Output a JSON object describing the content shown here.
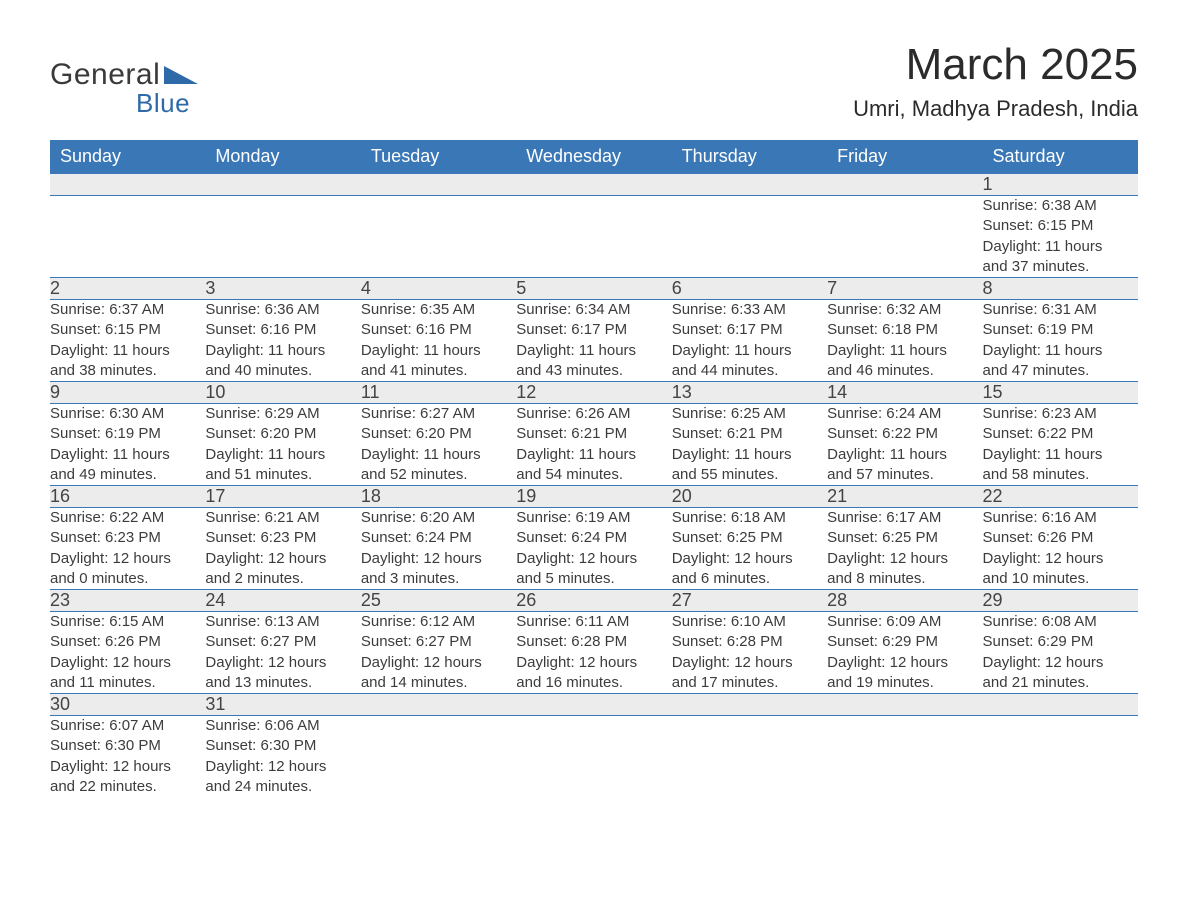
{
  "brand": {
    "word1": "General",
    "word2": "Blue",
    "color": "#2f6aa8"
  },
  "title": "March 2025",
  "location": "Umri, Madhya Pradesh, India",
  "header_bg": "#3a77b7",
  "daynum_bg": "#ececec",
  "days": [
    "Sunday",
    "Monday",
    "Tuesday",
    "Wednesday",
    "Thursday",
    "Friday",
    "Saturday"
  ],
  "weeks": [
    [
      null,
      null,
      null,
      null,
      null,
      null,
      {
        "n": "1",
        "sr": "Sunrise: 6:38 AM",
        "ss": "Sunset: 6:15 PM",
        "d1": "Daylight: 11 hours",
        "d2": "and 37 minutes."
      }
    ],
    [
      {
        "n": "2",
        "sr": "Sunrise: 6:37 AM",
        "ss": "Sunset: 6:15 PM",
        "d1": "Daylight: 11 hours",
        "d2": "and 38 minutes."
      },
      {
        "n": "3",
        "sr": "Sunrise: 6:36 AM",
        "ss": "Sunset: 6:16 PM",
        "d1": "Daylight: 11 hours",
        "d2": "and 40 minutes."
      },
      {
        "n": "4",
        "sr": "Sunrise: 6:35 AM",
        "ss": "Sunset: 6:16 PM",
        "d1": "Daylight: 11 hours",
        "d2": "and 41 minutes."
      },
      {
        "n": "5",
        "sr": "Sunrise: 6:34 AM",
        "ss": "Sunset: 6:17 PM",
        "d1": "Daylight: 11 hours",
        "d2": "and 43 minutes."
      },
      {
        "n": "6",
        "sr": "Sunrise: 6:33 AM",
        "ss": "Sunset: 6:17 PM",
        "d1": "Daylight: 11 hours",
        "d2": "and 44 minutes."
      },
      {
        "n": "7",
        "sr": "Sunrise: 6:32 AM",
        "ss": "Sunset: 6:18 PM",
        "d1": "Daylight: 11 hours",
        "d2": "and 46 minutes."
      },
      {
        "n": "8",
        "sr": "Sunrise: 6:31 AM",
        "ss": "Sunset: 6:19 PM",
        "d1": "Daylight: 11 hours",
        "d2": "and 47 minutes."
      }
    ],
    [
      {
        "n": "9",
        "sr": "Sunrise: 6:30 AM",
        "ss": "Sunset: 6:19 PM",
        "d1": "Daylight: 11 hours",
        "d2": "and 49 minutes."
      },
      {
        "n": "10",
        "sr": "Sunrise: 6:29 AM",
        "ss": "Sunset: 6:20 PM",
        "d1": "Daylight: 11 hours",
        "d2": "and 51 minutes."
      },
      {
        "n": "11",
        "sr": "Sunrise: 6:27 AM",
        "ss": "Sunset: 6:20 PM",
        "d1": "Daylight: 11 hours",
        "d2": "and 52 minutes."
      },
      {
        "n": "12",
        "sr": "Sunrise: 6:26 AM",
        "ss": "Sunset: 6:21 PM",
        "d1": "Daylight: 11 hours",
        "d2": "and 54 minutes."
      },
      {
        "n": "13",
        "sr": "Sunrise: 6:25 AM",
        "ss": "Sunset: 6:21 PM",
        "d1": "Daylight: 11 hours",
        "d2": "and 55 minutes."
      },
      {
        "n": "14",
        "sr": "Sunrise: 6:24 AM",
        "ss": "Sunset: 6:22 PM",
        "d1": "Daylight: 11 hours",
        "d2": "and 57 minutes."
      },
      {
        "n": "15",
        "sr": "Sunrise: 6:23 AM",
        "ss": "Sunset: 6:22 PM",
        "d1": "Daylight: 11 hours",
        "d2": "and 58 minutes."
      }
    ],
    [
      {
        "n": "16",
        "sr": "Sunrise: 6:22 AM",
        "ss": "Sunset: 6:23 PM",
        "d1": "Daylight: 12 hours",
        "d2": "and 0 minutes."
      },
      {
        "n": "17",
        "sr": "Sunrise: 6:21 AM",
        "ss": "Sunset: 6:23 PM",
        "d1": "Daylight: 12 hours",
        "d2": "and 2 minutes."
      },
      {
        "n": "18",
        "sr": "Sunrise: 6:20 AM",
        "ss": "Sunset: 6:24 PM",
        "d1": "Daylight: 12 hours",
        "d2": "and 3 minutes."
      },
      {
        "n": "19",
        "sr": "Sunrise: 6:19 AM",
        "ss": "Sunset: 6:24 PM",
        "d1": "Daylight: 12 hours",
        "d2": "and 5 minutes."
      },
      {
        "n": "20",
        "sr": "Sunrise: 6:18 AM",
        "ss": "Sunset: 6:25 PM",
        "d1": "Daylight: 12 hours",
        "d2": "and 6 minutes."
      },
      {
        "n": "21",
        "sr": "Sunrise: 6:17 AM",
        "ss": "Sunset: 6:25 PM",
        "d1": "Daylight: 12 hours",
        "d2": "and 8 minutes."
      },
      {
        "n": "22",
        "sr": "Sunrise: 6:16 AM",
        "ss": "Sunset: 6:26 PM",
        "d1": "Daylight: 12 hours",
        "d2": "and 10 minutes."
      }
    ],
    [
      {
        "n": "23",
        "sr": "Sunrise: 6:15 AM",
        "ss": "Sunset: 6:26 PM",
        "d1": "Daylight: 12 hours",
        "d2": "and 11 minutes."
      },
      {
        "n": "24",
        "sr": "Sunrise: 6:13 AM",
        "ss": "Sunset: 6:27 PM",
        "d1": "Daylight: 12 hours",
        "d2": "and 13 minutes."
      },
      {
        "n": "25",
        "sr": "Sunrise: 6:12 AM",
        "ss": "Sunset: 6:27 PM",
        "d1": "Daylight: 12 hours",
        "d2": "and 14 minutes."
      },
      {
        "n": "26",
        "sr": "Sunrise: 6:11 AM",
        "ss": "Sunset: 6:28 PM",
        "d1": "Daylight: 12 hours",
        "d2": "and 16 minutes."
      },
      {
        "n": "27",
        "sr": "Sunrise: 6:10 AM",
        "ss": "Sunset: 6:28 PM",
        "d1": "Daylight: 12 hours",
        "d2": "and 17 minutes."
      },
      {
        "n": "28",
        "sr": "Sunrise: 6:09 AM",
        "ss": "Sunset: 6:29 PM",
        "d1": "Daylight: 12 hours",
        "d2": "and 19 minutes."
      },
      {
        "n": "29",
        "sr": "Sunrise: 6:08 AM",
        "ss": "Sunset: 6:29 PM",
        "d1": "Daylight: 12 hours",
        "d2": "and 21 minutes."
      }
    ],
    [
      {
        "n": "30",
        "sr": "Sunrise: 6:07 AM",
        "ss": "Sunset: 6:30 PM",
        "d1": "Daylight: 12 hours",
        "d2": "and 22 minutes."
      },
      {
        "n": "31",
        "sr": "Sunrise: 6:06 AM",
        "ss": "Sunset: 6:30 PM",
        "d1": "Daylight: 12 hours",
        "d2": "and 24 minutes."
      },
      null,
      null,
      null,
      null,
      null
    ]
  ]
}
